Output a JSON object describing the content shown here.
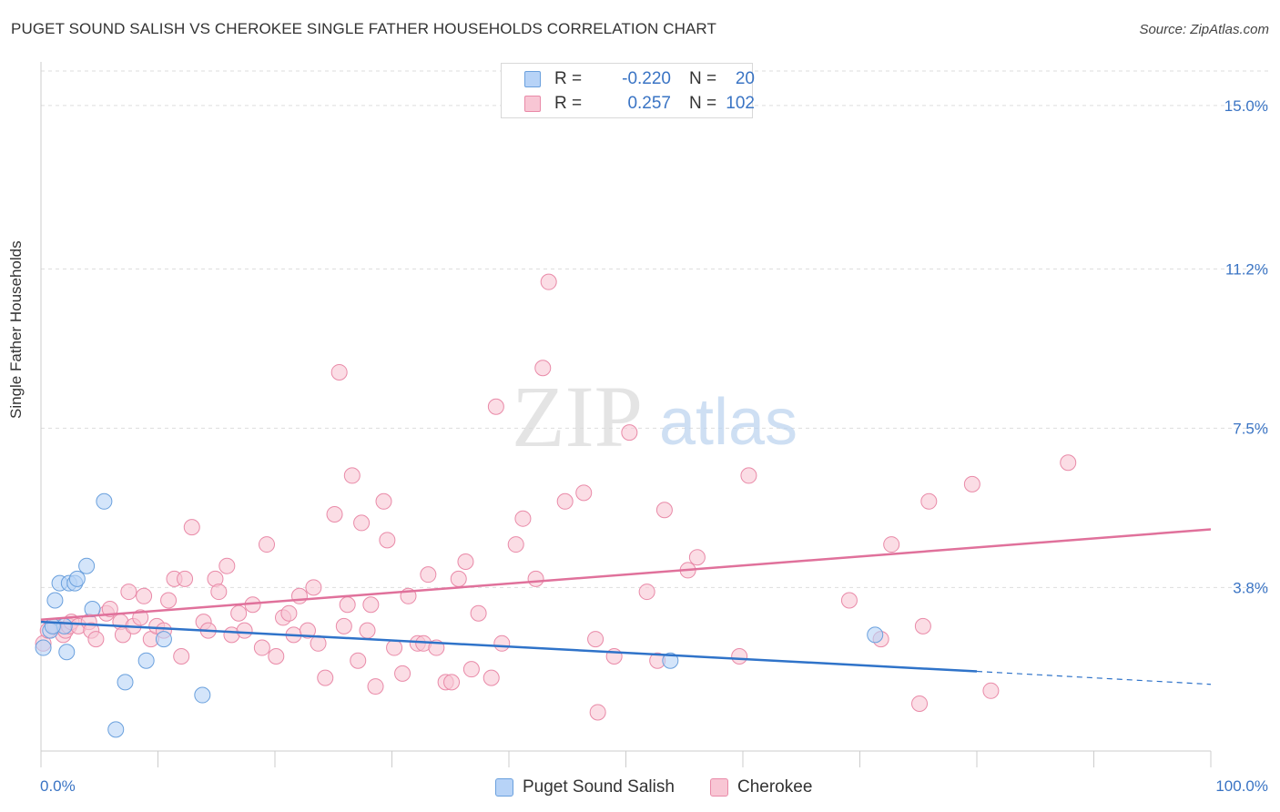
{
  "title": "PUGET SOUND SALISH VS CHEROKEE SINGLE FATHER HOUSEHOLDS CORRELATION CHART",
  "source": "Source: ZipAtlas.com",
  "watermark": {
    "zip": "ZIP",
    "atlas": "atlas"
  },
  "colors": {
    "blue_fill": "#b7d3f7",
    "blue_stroke": "#6aa0dd",
    "blue_line": "#2f73c9",
    "pink_fill": "#f8c6d4",
    "pink_stroke": "#e98aa8",
    "pink_line": "#e0719b",
    "tick_label": "#3a74c4",
    "grid": "#dddddd"
  },
  "legend": {
    "rows": [
      {
        "r_label": "R =",
        "r_value": "-0.220",
        "n_label": "N =",
        "n_value": "20",
        "color": "blue"
      },
      {
        "r_label": "R =",
        "r_value": "0.257",
        "n_label": "N =",
        "n_value": "102",
        "color": "pink"
      }
    ]
  },
  "chart_data": {
    "type": "scatter",
    "title": "PUGET SOUND SALISH VS CHEROKEE SINGLE FATHER HOUSEHOLDS CORRELATION CHART",
    "xlabel": "",
    "ylabel": "Single Father Households",
    "xlim": [
      0,
      100
    ],
    "ylim": [
      0,
      15.8
    ],
    "x_tick_labels": [
      "0.0%",
      "100.0%"
    ],
    "y_ticks": [
      3.8,
      7.5,
      11.2,
      15.0
    ],
    "y_tick_labels": [
      "3.8%",
      "7.5%",
      "11.2%",
      "15.0%"
    ],
    "grid": "horizontal dashed",
    "legend_position": "top-center",
    "series": [
      {
        "name": "Puget Sound Salish",
        "color": "blue",
        "points": [
          [
            0.2,
            2.4
          ],
          [
            0.8,
            2.8
          ],
          [
            1.2,
            3.5
          ],
          [
            1.6,
            3.9
          ],
          [
            2.0,
            2.9
          ],
          [
            2.2,
            2.3
          ],
          [
            2.4,
            3.9
          ],
          [
            2.9,
            3.9
          ],
          [
            3.1,
            4.0
          ],
          [
            3.9,
            4.3
          ],
          [
            4.4,
            3.3
          ],
          [
            5.4,
            5.8
          ],
          [
            7.2,
            1.6
          ],
          [
            9.0,
            2.1
          ],
          [
            10.5,
            2.6
          ],
          [
            13.8,
            1.3
          ],
          [
            6.4,
            0.5
          ],
          [
            71.3,
            2.7
          ],
          [
            53.8,
            2.1
          ],
          [
            1.0,
            2.9
          ]
        ],
        "trend": {
          "x": [
            0,
            80
          ],
          "y": [
            3.0,
            1.85
          ]
        },
        "trend_dashed": {
          "x": [
            80,
            100
          ],
          "y": [
            1.85,
            1.55
          ]
        }
      },
      {
        "name": "Cherokee",
        "color": "pink",
        "points": [
          [
            0.2,
            2.5
          ],
          [
            0.6,
            2.8
          ],
          [
            1.2,
            2.9
          ],
          [
            1.9,
            2.7
          ],
          [
            2.1,
            2.8
          ],
          [
            2.4,
            2.9
          ],
          [
            2.6,
            3.0
          ],
          [
            3.2,
            2.9
          ],
          [
            4.1,
            3.0
          ],
          [
            4.3,
            2.8
          ],
          [
            4.7,
            2.6
          ],
          [
            5.6,
            3.2
          ],
          [
            5.9,
            3.3
          ],
          [
            6.8,
            3.0
          ],
          [
            7.0,
            2.7
          ],
          [
            7.5,
            3.7
          ],
          [
            7.9,
            2.9
          ],
          [
            8.5,
            3.1
          ],
          [
            8.8,
            3.6
          ],
          [
            9.4,
            2.6
          ],
          [
            9.9,
            2.9
          ],
          [
            10.5,
            2.8
          ],
          [
            10.9,
            3.5
          ],
          [
            11.4,
            4.0
          ],
          [
            12.0,
            2.2
          ],
          [
            12.3,
            4.0
          ],
          [
            12.9,
            5.2
          ],
          [
            13.9,
            3.0
          ],
          [
            14.3,
            2.8
          ],
          [
            14.9,
            4.0
          ],
          [
            15.2,
            3.7
          ],
          [
            15.9,
            4.3
          ],
          [
            16.3,
            2.7
          ],
          [
            16.9,
            3.2
          ],
          [
            17.4,
            2.8
          ],
          [
            18.1,
            3.4
          ],
          [
            18.9,
            2.4
          ],
          [
            19.3,
            4.8
          ],
          [
            20.1,
            2.2
          ],
          [
            20.7,
            3.1
          ],
          [
            21.2,
            3.2
          ],
          [
            21.6,
            2.7
          ],
          [
            22.1,
            3.6
          ],
          [
            22.8,
            2.8
          ],
          [
            23.3,
            3.8
          ],
          [
            23.7,
            2.5
          ],
          [
            24.3,
            1.7
          ],
          [
            25.1,
            5.5
          ],
          [
            25.5,
            8.8
          ],
          [
            25.9,
            2.9
          ],
          [
            26.2,
            3.4
          ],
          [
            26.6,
            6.4
          ],
          [
            27.1,
            2.1
          ],
          [
            27.4,
            5.3
          ],
          [
            27.9,
            2.8
          ],
          [
            28.2,
            3.4
          ],
          [
            28.6,
            1.5
          ],
          [
            29.3,
            5.8
          ],
          [
            29.6,
            4.9
          ],
          [
            30.2,
            2.4
          ],
          [
            30.9,
            1.8
          ],
          [
            31.4,
            3.6
          ],
          [
            32.2,
            2.5
          ],
          [
            32.7,
            2.5
          ],
          [
            33.1,
            4.1
          ],
          [
            33.8,
            2.4
          ],
          [
            34.6,
            1.6
          ],
          [
            35.1,
            1.6
          ],
          [
            35.7,
            4.0
          ],
          [
            36.3,
            4.4
          ],
          [
            36.8,
            1.9
          ],
          [
            37.4,
            3.2
          ],
          [
            38.5,
            1.7
          ],
          [
            38.9,
            8.0
          ],
          [
            39.4,
            2.5
          ],
          [
            40.6,
            4.8
          ],
          [
            41.2,
            5.4
          ],
          [
            42.3,
            4.0
          ],
          [
            42.9,
            8.9
          ],
          [
            43.4,
            10.9
          ],
          [
            44.8,
            5.8
          ],
          [
            46.4,
            6.0
          ],
          [
            47.4,
            2.6
          ],
          [
            47.6,
            0.9
          ],
          [
            49.0,
            2.2
          ],
          [
            50.3,
            7.4
          ],
          [
            51.8,
            3.7
          ],
          [
            52.7,
            2.1
          ],
          [
            53.3,
            5.6
          ],
          [
            55.3,
            4.2
          ],
          [
            56.1,
            4.5
          ],
          [
            59.7,
            2.2
          ],
          [
            60.5,
            6.4
          ],
          [
            69.1,
            3.5
          ],
          [
            71.8,
            2.6
          ],
          [
            72.7,
            4.8
          ],
          [
            75.1,
            1.1
          ],
          [
            75.4,
            2.9
          ],
          [
            75.9,
            5.8
          ],
          [
            79.6,
            6.2
          ],
          [
            81.2,
            1.4
          ],
          [
            87.8,
            6.7
          ]
        ],
        "trend": {
          "x": [
            0,
            100
          ],
          "y": [
            3.05,
            5.15
          ]
        }
      }
    ]
  }
}
